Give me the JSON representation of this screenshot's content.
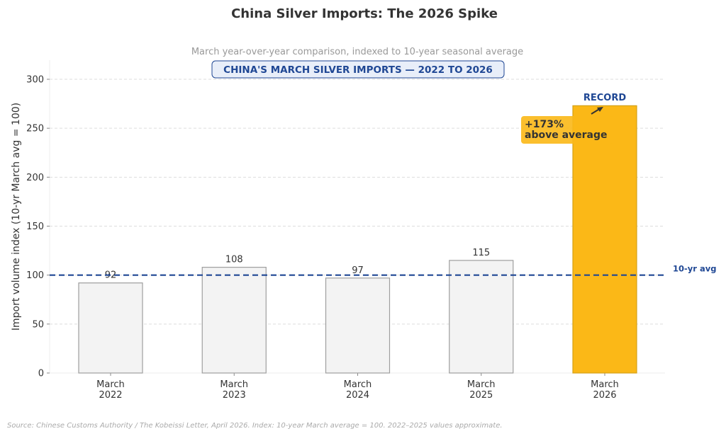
{
  "chart_data": {
    "type": "bar",
    "title": "China Silver Imports: The 2026 Spike",
    "subtitle": "March year-over-year comparison, indexed to 10-year seasonal average",
    "banner": "CHINA'S MARCH SILVER IMPORTS — 2022 TO 2026",
    "ylabel": "Import volume index  (10-yr March avg = 100)",
    "xlabel": "",
    "ylim": [
      0,
      320
    ],
    "yticks": [
      "0",
      "50",
      "100",
      "150",
      "200",
      "250",
      "300"
    ],
    "categories": [
      [
        "March",
        "2022"
      ],
      [
        "March",
        "2023"
      ],
      [
        "March",
        "2024"
      ],
      [
        "March",
        "2025"
      ],
      [
        "March",
        "2026"
      ]
    ],
    "values": [
      92,
      108,
      97,
      115,
      273
    ],
    "data_labels": [
      "92",
      "108",
      "97",
      "115",
      ""
    ],
    "grid": true,
    "colors": {
      "normal_fill": "#f3f3f3",
      "normal_edge": "#9e9e9e",
      "highlight_fill": "#fbb817",
      "highlight_edge": "#d4a017",
      "avg_line": "#1f4794"
    },
    "reference_line": {
      "value": 100,
      "label": "10-yr avg"
    },
    "annotations": {
      "record": "RECORD",
      "pct_line1": "+173%",
      "pct_line2": "above average"
    },
    "footnote": "Source: Chinese Customs Authority / The Kobeissi Letter, April 2026. Index: 10-year March average = 100. 2022–2025 values approximate."
  }
}
